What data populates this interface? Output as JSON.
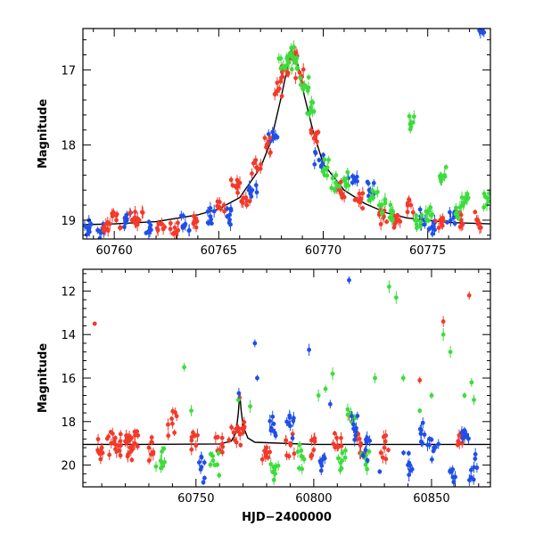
{
  "chart_data": [
    {
      "type": "scatter",
      "xlabel": "",
      "ylabel": "Magnitude",
      "xlim": [
        60758.5,
        60778
      ],
      "ylim": [
        19.25,
        16.45
      ],
      "y_inverted": true,
      "grid": false,
      "x_ticks": [
        60760,
        60765,
        60770,
        60775
      ],
      "x_tick_labels": [
        "60760",
        "60765",
        "60770",
        "60775"
      ],
      "y_ticks": [
        17,
        18,
        19
      ],
      "y_tick_labels": [
        "17",
        "18",
        "19"
      ],
      "colors": {
        "red": "#f23a2a",
        "green": "#3ddc3d",
        "blue": "#1f4fe8",
        "model": "#000000"
      },
      "model_curve": {
        "peak_x": 60768.55,
        "peak_y": 16.68,
        "baseline_y": 19.05,
        "x": [
          60758.5,
          60760,
          60762,
          60764,
          60765,
          60766,
          60767,
          60767.5,
          60768,
          60768.3,
          60768.55,
          60768.8,
          60769.1,
          60769.5,
          60770,
          60771,
          60772,
          60773,
          60774,
          60776,
          60778
        ],
        "y": [
          19.06,
          19.05,
          19.02,
          18.93,
          18.85,
          18.7,
          18.3,
          17.95,
          17.35,
          16.95,
          16.68,
          16.95,
          17.35,
          17.8,
          18.25,
          18.6,
          18.78,
          18.9,
          18.97,
          19.03,
          19.05
        ]
      },
      "series": [
        {
          "color": "blue",
          "x": [
            60758.7,
            60759.3,
            60760.6,
            60761.7,
            60763.4,
            60764.6,
            60765.4,
            60766.6,
            60767.6,
            60769.8,
            60771.4,
            60772.2,
            60774.7,
            60775.2,
            60776.1,
            60777.6
          ],
          "y": [
            19.1,
            19.15,
            19.0,
            19.1,
            19.05,
            18.95,
            18.95,
            18.6,
            17.9,
            18.2,
            18.5,
            18.6,
            18.95,
            19.1,
            19.0,
            16.45
          ]
        },
        {
          "color": "red",
          "x": [
            60759.6,
            60760.1,
            60760.9,
            60761.2,
            60762.2,
            60762.9,
            60763.9,
            60765.1,
            60765.8,
            60766.3,
            60766.8,
            60767.3,
            60767.9,
            60768.2,
            60768.6,
            60768.9,
            60769.6,
            60770.8,
            60771.7,
            60772.9,
            60773.6,
            60774.2,
            60775.6,
            60776.6,
            60777.4
          ],
          "y": [
            19.05,
            19.0,
            19.0,
            19.0,
            19.05,
            19.1,
            19.0,
            18.85,
            18.55,
            18.7,
            18.3,
            18.0,
            17.25,
            17.0,
            16.85,
            17.1,
            17.9,
            18.6,
            18.75,
            18.95,
            19.0,
            18.8,
            19.0,
            19.0,
            19.0
          ]
        },
        {
          "color": "green",
          "x": [
            60768.1,
            60768.4,
            60768.7,
            60769.1,
            60769.4,
            60770.2,
            60770.6,
            60771.0,
            60772.4,
            60772.8,
            60773.3,
            60774.2,
            60774.5,
            60775.0,
            60775.8,
            60776.4,
            60776.8,
            60777.9
          ],
          "y": [
            16.95,
            16.8,
            16.9,
            17.2,
            17.5,
            18.3,
            18.5,
            18.45,
            18.7,
            18.8,
            18.9,
            17.7,
            19.0,
            18.9,
            18.4,
            18.9,
            18.7,
            18.75
          ]
        }
      ]
    },
    {
      "type": "scatter",
      "xlabel": "HJD−2400000",
      "ylabel": "Magnitude",
      "xlim": [
        60702,
        60875
      ],
      "ylim": [
        21.0,
        11.0
      ],
      "y_inverted": true,
      "grid": false,
      "x_ticks": [
        60750,
        60800,
        60850
      ],
      "x_tick_labels": [
        "60750",
        "60800",
        "60850"
      ],
      "y_ticks": [
        12,
        14,
        16,
        18,
        20
      ],
      "y_tick_labels": [
        "12",
        "14",
        "16",
        "18",
        "20"
      ],
      "colors": {
        "red": "#f23a2a",
        "green": "#3ddc3d",
        "blue": "#1f4fe8",
        "model": "#000000"
      },
      "model_curve": {
        "x": [
          60702,
          60725,
          60760,
          60765,
          60767,
          60768,
          60768.55,
          60769.2,
          60770,
          60772,
          60775,
          60800,
          60875
        ],
        "y": [
          19.05,
          19.05,
          19.03,
          18.9,
          18.5,
          17.6,
          16.7,
          17.5,
          18.2,
          18.75,
          18.95,
          19.05,
          19.05
        ]
      },
      "series": [
        {
          "color": "red",
          "x": [
            60707,
            60710,
            60714,
            60717,
            60720,
            60722,
            60724,
            60730,
            60740,
            60750,
            60760,
            60766,
            60768.5,
            60770,
            60780,
            60790,
            60800,
            60810,
            60815,
            60820,
            60830,
            60845,
            60855,
            60863,
            60866
          ],
          "y": [
            13.5,
            19.2,
            19.0,
            19.1,
            18.9,
            19.2,
            19.0,
            19.2,
            18.1,
            19.1,
            19.3,
            18.5,
            16.9,
            18.5,
            19.2,
            19.0,
            19.3,
            19.1,
            17.7,
            19.0,
            19.2,
            16.1,
            13.4,
            19.0,
            12.2
          ]
        },
        {
          "color": "green",
          "x": [
            60735,
            60745,
            60748,
            60758,
            60768,
            60773,
            60783,
            60795,
            60802,
            60805,
            60808,
            60812,
            60816,
            60822,
            60826,
            60832,
            60835,
            60838,
            60845,
            60850,
            60855,
            60858,
            60864,
            60867,
            60868
          ],
          "y": [
            19.8,
            15.5,
            17.5,
            20.0,
            17.0,
            17.3,
            20.1,
            19.6,
            16.8,
            16.5,
            15.8,
            19.8,
            18.0,
            19.7,
            16.0,
            11.8,
            12.3,
            16.0,
            17.5,
            16.8,
            14.0,
            14.8,
            16.8,
            16.2,
            17.0
          ]
        },
        {
          "color": "blue",
          "x": [
            60752,
            60768.2,
            60775,
            60776,
            60782,
            60790,
            60798,
            60803,
            60807,
            60815,
            60818,
            60822,
            60828,
            60840,
            60847,
            60851,
            60859,
            60864,
            60868
          ],
          "y": [
            20.2,
            16.7,
            14.4,
            16.0,
            18.3,
            18.2,
            14.7,
            19.9,
            17.2,
            11.5,
            18.3,
            19.3,
            20.3,
            20.0,
            18.6,
            19.2,
            20.2,
            18.7,
            20.1
          ]
        }
      ]
    }
  ]
}
